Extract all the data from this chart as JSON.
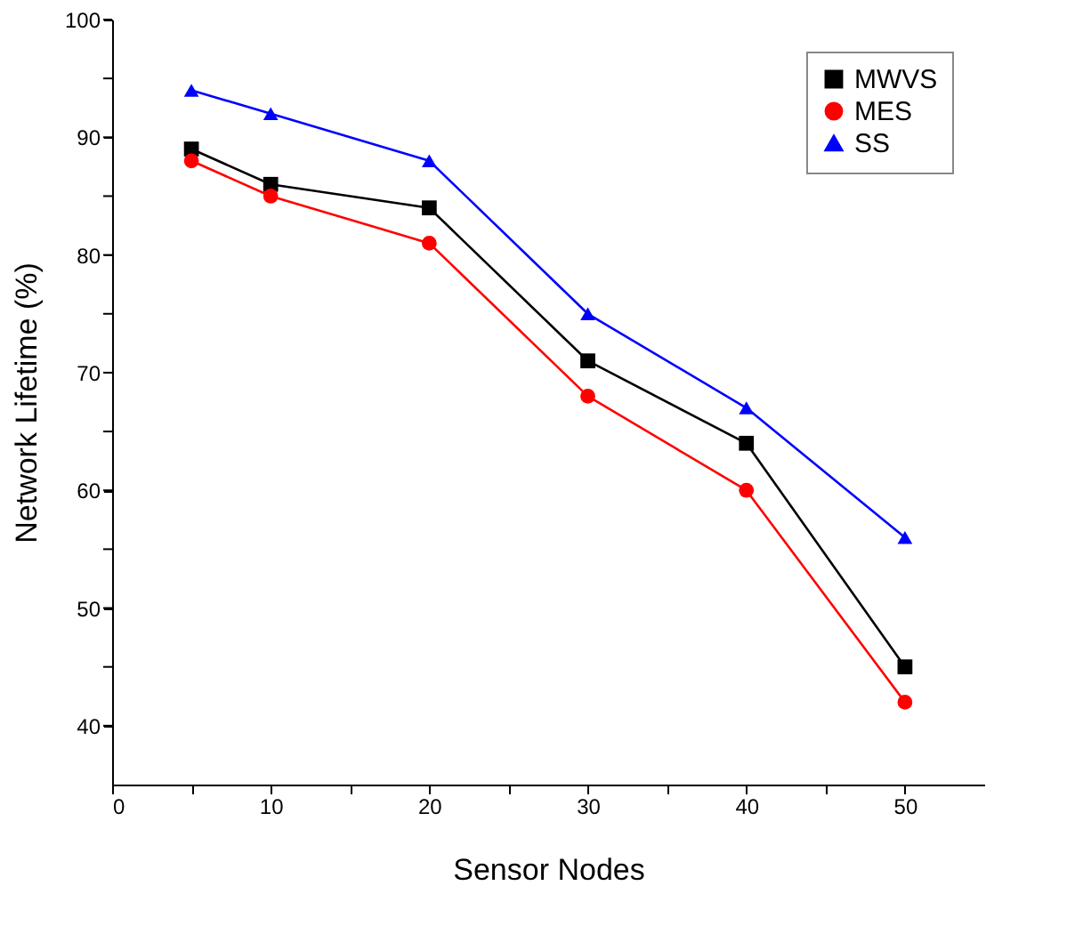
{
  "chart_data": {
    "type": "line",
    "xlabel": "Sensor Nodes",
    "ylabel": "Network Lifetime  (%)",
    "x": [
      5,
      10,
      20,
      30,
      40,
      50
    ],
    "series": [
      {
        "name": "MWVS",
        "color": "#000000",
        "marker": "square",
        "values": [
          89,
          86,
          84,
          71,
          64,
          45
        ]
      },
      {
        "name": "MES",
        "color": "#ff0000",
        "marker": "circle",
        "values": [
          88,
          85,
          81,
          68,
          60,
          42
        ]
      },
      {
        "name": "SS",
        "color": "#0000ff",
        "marker": "triangle",
        "values": [
          94,
          92,
          88,
          75,
          67,
          56
        ]
      }
    ],
    "xlim": [
      0,
      55
    ],
    "xticks": [
      0,
      {
        "value": 5,
        "label": null
      },
      10,
      {
        "value": 15,
        "label": null
      },
      20,
      {
        "value": 25,
        "label": null
      },
      30,
      {
        "value": 35,
        "label": null
      },
      40,
      {
        "value": 45,
        "label": null
      },
      50
    ],
    "ylim": [
      35,
      100
    ],
    "yticks": [
      40,
      {
        "value": 45,
        "label": null
      },
      50,
      {
        "value": 55,
        "label": null
      },
      60,
      {
        "value": 65,
        "label": null
      },
      70,
      {
        "value": 75,
        "label": null
      },
      80,
      {
        "value": 85,
        "label": null
      },
      90,
      {
        "value": 95,
        "label": null
      },
      100
    ],
    "grid": false,
    "legend": "top right",
    "line_style": "solid"
  }
}
